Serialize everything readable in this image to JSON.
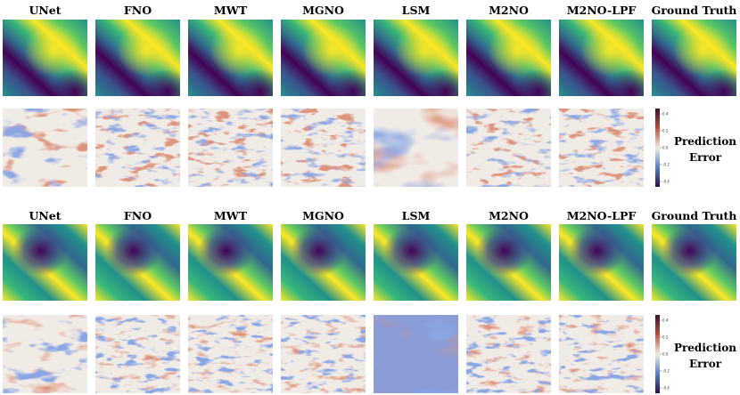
{
  "panels": [
    {
      "columns": [
        "UNet",
        "FNO",
        "MWT",
        "MGNO",
        "LSM",
        "M2NO",
        "M2NO-LPF",
        "Ground Truth"
      ],
      "colorbar_ticks": [
        "0.4",
        "0.2",
        "0.0",
        "-0.2",
        "-0.4"
      ],
      "side_label": [
        "Prediction",
        "Error"
      ]
    },
    {
      "columns": [
        "UNet",
        "FNO",
        "MWT",
        "MGNO",
        "LSM",
        "M2NO",
        "M2NO-LPF",
        "Ground Truth"
      ],
      "colorbar_ticks": [
        "0.4",
        "0.2",
        "0.0",
        "-0.2",
        "-0.4"
      ],
      "side_label": [
        "Prediction",
        "Error"
      ]
    }
  ]
}
